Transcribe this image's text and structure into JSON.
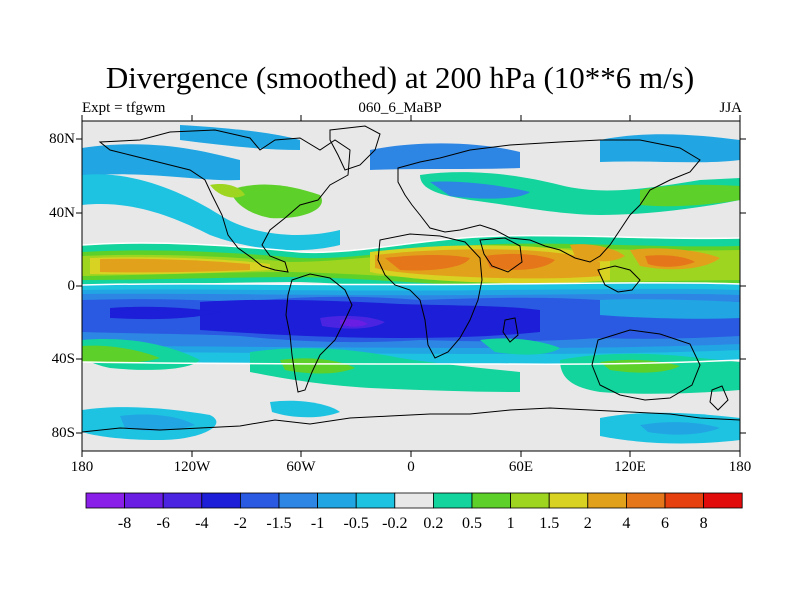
{
  "title": "Divergence (smoothed) at 200 hPa (10**6 m/s)",
  "subtitle_left": "Expt = tfgwm",
  "subtitle_center": "060_6_MaBP",
  "subtitle_right": "JJA",
  "lat_labels": [
    "80N",
    "40N",
    "0",
    "40S",
    "80S"
  ],
  "lon_labels": [
    "180",
    "120W",
    "60W",
    "0",
    "60E",
    "120E",
    "180"
  ],
  "colorbar": {
    "labels": [
      "-8",
      "-6",
      "-4",
      "-2",
      "-1.5",
      "-1",
      "-0.5",
      "-0.2",
      "0.2",
      "0.5",
      "1",
      "1.5",
      "2",
      "4",
      "6",
      "8"
    ],
    "colors": [
      "#8b1fea",
      "#6a1ee4",
      "#4a24e0",
      "#1c1fd7",
      "#2a5ae2",
      "#2d86e4",
      "#21a6e3",
      "#1ec3e2",
      "#e8e8e8",
      "#12d49c",
      "#5dd12a",
      "#9ed520",
      "#d8d222",
      "#e2a11b",
      "#e5761a",
      "#e6400e",
      "#e20b0b"
    ]
  },
  "map_colors": {
    "neutral": "#e8e8e8",
    "coast": "#000000",
    "contour": "#ffffff"
  }
}
